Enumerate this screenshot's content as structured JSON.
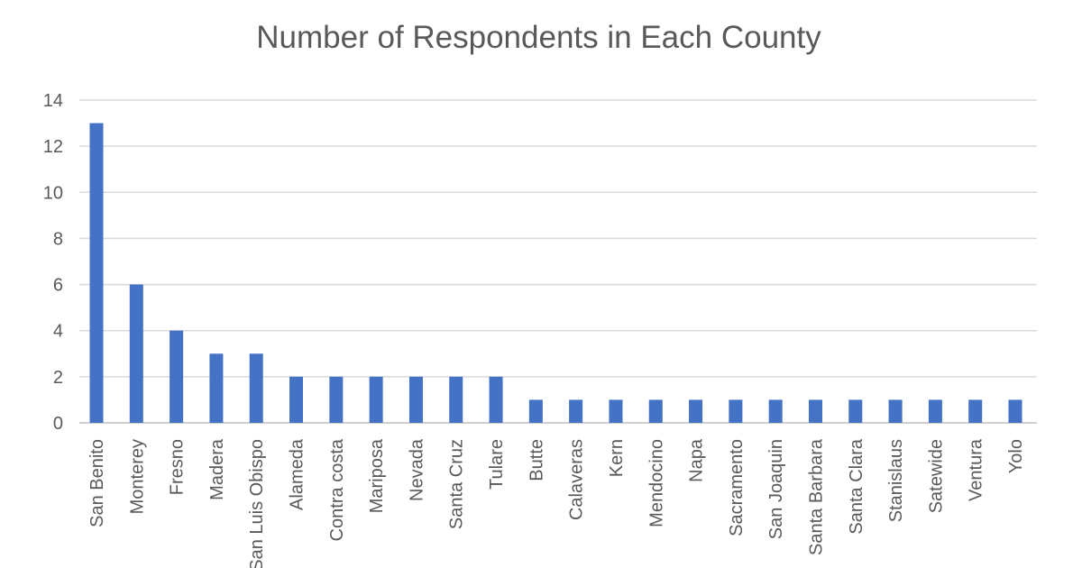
{
  "chart_data": {
    "type": "bar",
    "title": "Number of Respondents in Each County",
    "xlabel": "",
    "ylabel": "",
    "ylim": [
      0,
      14
    ],
    "yticks": [
      0,
      2,
      4,
      6,
      8,
      10,
      12,
      14
    ],
    "grid": true,
    "legend": "none",
    "bar_color": "#4472C4",
    "categories": [
      "San Benito",
      "Monterey",
      "Fresno",
      "Madera",
      "San Luis Obispo",
      "Alameda",
      "Contra costa",
      "Mariposa",
      "Nevada",
      "Santa Cruz",
      "Tulare",
      "Butte",
      "Calaveras",
      "Kern",
      "Mendocino",
      "Napa",
      "Sacramento",
      "San Joaquin",
      "Santa Barbara",
      "Santa Clara",
      "Stanislaus",
      "Satewide",
      "Ventura",
      "Yolo"
    ],
    "values": [
      13,
      6,
      4,
      3,
      3,
      2,
      2,
      2,
      2,
      2,
      2,
      1,
      1,
      1,
      1,
      1,
      1,
      1,
      1,
      1,
      1,
      1,
      1,
      1
    ]
  }
}
